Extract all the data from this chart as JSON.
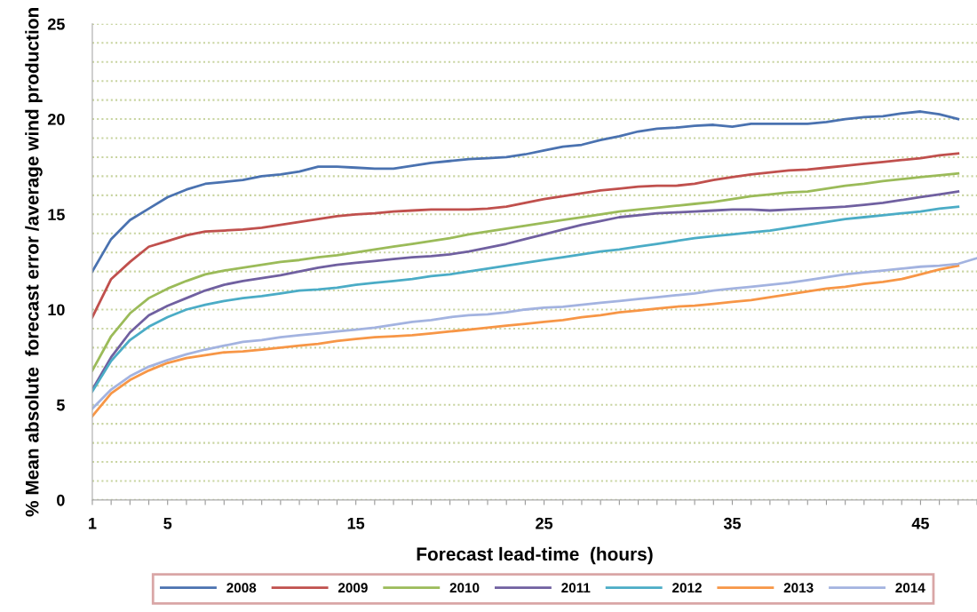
{
  "chart_data": {
    "type": "line",
    "xlabel": "Forecast lead-time  (hours)",
    "ylabel": "% Mean absolute  forecast error /average wind production",
    "x": [
      1,
      2,
      3,
      4,
      5,
      6,
      7,
      8,
      9,
      10,
      11,
      12,
      13,
      14,
      15,
      16,
      17,
      18,
      19,
      20,
      21,
      22,
      23,
      24,
      25,
      26,
      27,
      28,
      29,
      30,
      31,
      32,
      33,
      34,
      35,
      36,
      37,
      38,
      39,
      40,
      41,
      42,
      43,
      44,
      45,
      46,
      47
    ],
    "series": [
      {
        "name": "2008",
        "color": "#4a72b0",
        "values": [
          12.0,
          13.7,
          14.7,
          15.3,
          15.9,
          16.3,
          16.6,
          16.7,
          16.8,
          17.0,
          17.1,
          17.25,
          17.5,
          17.5,
          17.45,
          17.4,
          17.4,
          17.55,
          17.7,
          17.8,
          17.9,
          17.95,
          18.0,
          18.15,
          18.35,
          18.55,
          18.65,
          18.9,
          19.1,
          19.35,
          19.5,
          19.55,
          19.65,
          19.7,
          19.6,
          19.75,
          19.75,
          19.75,
          19.75,
          19.85,
          20.0,
          20.1,
          20.15,
          20.3,
          20.4,
          20.25,
          20.0
        ]
      },
      {
        "name": "2009",
        "color": "#c0504d",
        "values": [
          9.6,
          11.6,
          12.5,
          13.3,
          13.6,
          13.9,
          14.1,
          14.15,
          14.2,
          14.3,
          14.45,
          14.6,
          14.75,
          14.9,
          15.0,
          15.05,
          15.15,
          15.2,
          15.25,
          15.25,
          15.25,
          15.3,
          15.4,
          15.6,
          15.8,
          15.95,
          16.1,
          16.25,
          16.35,
          16.45,
          16.5,
          16.5,
          16.6,
          16.8,
          16.95,
          17.1,
          17.2,
          17.3,
          17.35,
          17.45,
          17.55,
          17.65,
          17.75,
          17.85,
          17.95,
          18.1,
          18.2
        ]
      },
      {
        "name": "2010",
        "color": "#9bbb59",
        "values": [
          6.8,
          8.6,
          9.8,
          10.6,
          11.1,
          11.5,
          11.85,
          12.05,
          12.2,
          12.35,
          12.5,
          12.6,
          12.75,
          12.85,
          13.0,
          13.15,
          13.3,
          13.45,
          13.6,
          13.75,
          13.95,
          14.1,
          14.25,
          14.4,
          14.55,
          14.7,
          14.85,
          15.0,
          15.15,
          15.25,
          15.35,
          15.45,
          15.55,
          15.65,
          15.8,
          15.95,
          16.05,
          16.15,
          16.2,
          16.35,
          16.5,
          16.6,
          16.75,
          16.85,
          16.95,
          17.05,
          17.15
        ]
      },
      {
        "name": "2011",
        "color": "#7060a0",
        "values": [
          5.8,
          7.5,
          8.8,
          9.7,
          10.2,
          10.6,
          11.0,
          11.3,
          11.5,
          11.65,
          11.8,
          12.0,
          12.2,
          12.35,
          12.45,
          12.55,
          12.65,
          12.75,
          12.8,
          12.9,
          13.05,
          13.25,
          13.45,
          13.7,
          13.95,
          14.2,
          14.45,
          14.65,
          14.85,
          14.95,
          15.05,
          15.1,
          15.15,
          15.2,
          15.25,
          15.25,
          15.2,
          15.25,
          15.3,
          15.35,
          15.4,
          15.5,
          15.6,
          15.75,
          15.9,
          16.05,
          16.2
        ]
      },
      {
        "name": "2012",
        "color": "#4bacc6",
        "values": [
          5.7,
          7.3,
          8.4,
          9.1,
          9.6,
          10.0,
          10.25,
          10.45,
          10.6,
          10.7,
          10.85,
          11.0,
          11.05,
          11.15,
          11.3,
          11.4,
          11.5,
          11.6,
          11.75,
          11.85,
          12.0,
          12.15,
          12.3,
          12.45,
          12.6,
          12.75,
          12.9,
          13.05,
          13.15,
          13.3,
          13.45,
          13.6,
          13.75,
          13.85,
          13.95,
          14.05,
          14.15,
          14.3,
          14.45,
          14.6,
          14.75,
          14.85,
          14.95,
          15.05,
          15.15,
          15.3,
          15.4
        ]
      },
      {
        "name": "2013",
        "color": "#f79646",
        "values": [
          4.4,
          5.6,
          6.3,
          6.8,
          7.2,
          7.45,
          7.6,
          7.75,
          7.8,
          7.9,
          8.0,
          8.1,
          8.2,
          8.35,
          8.45,
          8.55,
          8.6,
          8.65,
          8.75,
          8.85,
          8.95,
          9.05,
          9.15,
          9.25,
          9.35,
          9.45,
          9.6,
          9.7,
          9.85,
          9.95,
          10.05,
          10.15,
          10.2,
          10.3,
          10.4,
          10.5,
          10.65,
          10.8,
          10.95,
          11.1,
          11.2,
          11.35,
          11.45,
          11.6,
          11.85,
          12.1,
          12.3
        ]
      },
      {
        "name": "2014",
        "color": "#a3b3e0",
        "x": [
          1,
          2,
          3,
          4,
          5,
          6,
          7,
          8,
          9,
          10,
          11,
          12,
          13,
          14,
          15,
          16,
          17,
          18,
          19,
          20,
          21,
          22,
          23,
          24,
          25,
          26,
          27,
          28,
          29,
          30,
          31,
          32,
          33,
          34,
          35,
          36,
          37,
          38,
          39,
          40,
          41,
          42,
          43,
          44,
          45,
          46,
          47,
          48
        ],
        "values": [
          4.8,
          5.8,
          6.5,
          7.0,
          7.35,
          7.65,
          7.9,
          8.1,
          8.3,
          8.4,
          8.55,
          8.65,
          8.75,
          8.85,
          8.95,
          9.05,
          9.2,
          9.35,
          9.45,
          9.6,
          9.7,
          9.75,
          9.85,
          10.0,
          10.1,
          10.15,
          10.25,
          10.35,
          10.45,
          10.55,
          10.65,
          10.75,
          10.85,
          11.0,
          11.1,
          11.2,
          11.3,
          11.4,
          11.55,
          11.7,
          11.85,
          11.95,
          12.05,
          12.15,
          12.25,
          12.3,
          12.4,
          12.7
        ]
      }
    ],
    "xlim": [
      1,
      48
    ],
    "xticks": [
      1,
      {
        "value": 2,
        "label": null
      },
      {
        "value": 3,
        "label": null
      },
      {
        "value": 4,
        "label": null
      },
      5,
      {
        "value": 6,
        "label": null
      },
      {
        "value": 7,
        "label": null
      },
      {
        "value": 8,
        "label": null
      },
      {
        "value": 9,
        "label": null
      },
      {
        "value": 10,
        "label": null
      },
      {
        "value": 11,
        "label": null
      },
      {
        "value": 12,
        "label": null
      },
      {
        "value": 13,
        "label": null
      },
      {
        "value": 14,
        "label": null
      },
      15,
      {
        "value": 16,
        "label": null
      },
      {
        "value": 17,
        "label": null
      },
      {
        "value": 18,
        "label": null
      },
      {
        "value": 19,
        "label": null
      },
      {
        "value": 20,
        "label": null
      },
      {
        "value": 21,
        "label": null
      },
      {
        "value": 22,
        "label": null
      },
      {
        "value": 23,
        "label": null
      },
      {
        "value": 24,
        "label": null
      },
      25,
      {
        "value": 26,
        "label": null
      },
      {
        "value": 27,
        "label": null
      },
      {
        "value": 28,
        "label": null
      },
      {
        "value": 29,
        "label": null
      },
      {
        "value": 30,
        "label": null
      },
      {
        "value": 31,
        "label": null
      },
      {
        "value": 32,
        "label": null
      },
      {
        "value": 33,
        "label": null
      },
      {
        "value": 34,
        "label": null
      },
      35,
      {
        "value": 36,
        "label": null
      },
      {
        "value": 37,
        "label": null
      },
      {
        "value": 38,
        "label": null
      },
      {
        "value": 39,
        "label": null
      },
      {
        "value": 40,
        "label": null
      },
      {
        "value": 41,
        "label": null
      },
      {
        "value": 42,
        "label": null
      },
      {
        "value": 43,
        "label": null
      },
      {
        "value": 44,
        "label": null
      },
      45,
      {
        "value": 46,
        "label": null
      },
      {
        "value": 47,
        "label": null
      },
      {
        "value": 48,
        "label": null
      }
    ],
    "ylim": [
      0,
      25
    ],
    "yticks": [
      0,
      {
        "value": 1,
        "label": null
      },
      {
        "value": 2,
        "label": null
      },
      {
        "value": 3,
        "label": null
      },
      {
        "value": 4,
        "label": null
      },
      5,
      {
        "value": 6,
        "label": null
      },
      {
        "value": 7,
        "label": null
      },
      {
        "value": 8,
        "label": null
      },
      {
        "value": 9,
        "label": null
      },
      10,
      {
        "value": 11,
        "label": null
      },
      {
        "value": 12,
        "label": null
      },
      {
        "value": 13,
        "label": null
      },
      {
        "value": 14,
        "label": null
      },
      15,
      {
        "value": 16,
        "label": null
      },
      {
        "value": 17,
        "label": null
      },
      {
        "value": 18,
        "label": null
      },
      {
        "value": 19,
        "label": null
      },
      20,
      {
        "value": 21,
        "label": null
      },
      {
        "value": 22,
        "label": null
      },
      {
        "value": 23,
        "label": null
      },
      {
        "value": 24,
        "label": null
      },
      25
    ],
    "grid": "y",
    "legend": "bottom",
    "marker": "none",
    "line_style": "solid"
  }
}
